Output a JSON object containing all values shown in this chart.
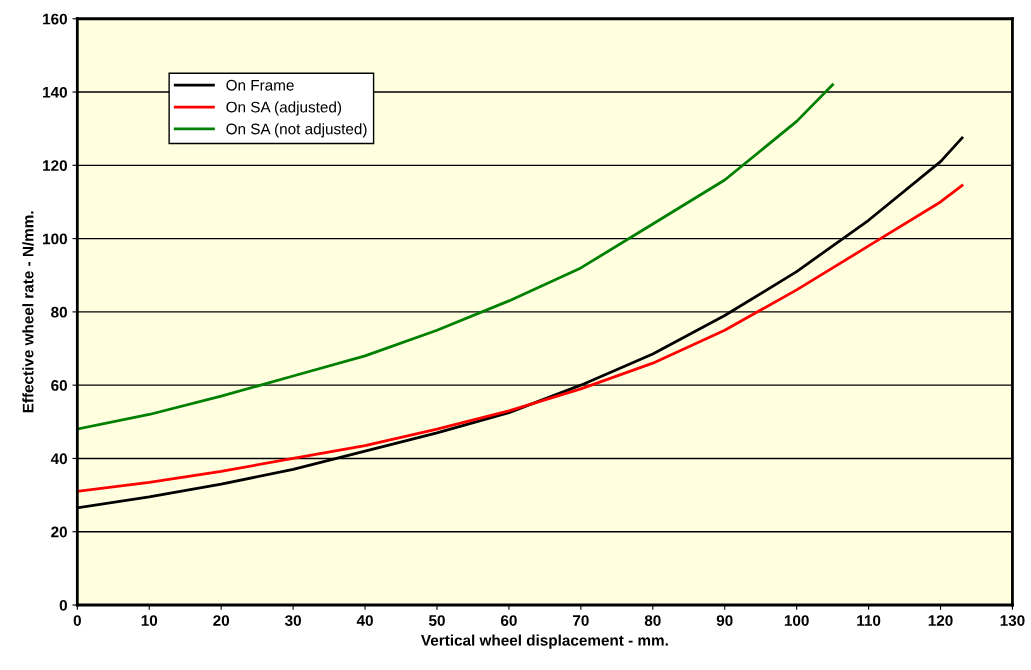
{
  "chart_data": {
    "type": "line",
    "xlabel": "Vertical wheel displacement - mm.",
    "ylabel": "Effective wheel rate - N/mm.",
    "xlim": [
      0,
      130
    ],
    "xticks": [
      0,
      10,
      20,
      30,
      40,
      50,
      60,
      70,
      80,
      90,
      100,
      110,
      120,
      130
    ],
    "ylim": [
      0,
      160
    ],
    "yticks": [
      0,
      20,
      40,
      60,
      80,
      100,
      120,
      140,
      160
    ],
    "grid": "y",
    "legend": "top left",
    "marker": "none",
    "line_style": "solid",
    "series": [
      {
        "name": "On Frame",
        "color": "#000000",
        "x": [
          0,
          10,
          20,
          30,
          40,
          50,
          60,
          70,
          80,
          90,
          100,
          110,
          120,
          123
        ],
        "values": [
          26.5,
          29.5,
          33,
          37,
          42,
          47,
          52.5,
          60,
          68.5,
          79,
          91,
          105,
          121,
          127.5
        ]
      },
      {
        "name": "On SA (adjusted)",
        "color": "#ff0000",
        "x": [
          0,
          10,
          20,
          30,
          40,
          50,
          60,
          70,
          80,
          90,
          100,
          110,
          120,
          123
        ],
        "values": [
          31,
          33.5,
          36.5,
          40,
          43.5,
          48,
          53,
          59,
          66,
          75,
          86,
          98,
          110,
          114.5
        ]
      },
      {
        "name": "On SA (not adjusted)",
        "color": "#008000",
        "x": [
          0,
          10,
          20,
          30,
          40,
          50,
          60,
          70,
          80,
          90,
          100,
          105
        ],
        "values": [
          48,
          52,
          57,
          62.5,
          68,
          75,
          83,
          92,
          104,
          116,
          132,
          142
        ]
      }
    ]
  }
}
